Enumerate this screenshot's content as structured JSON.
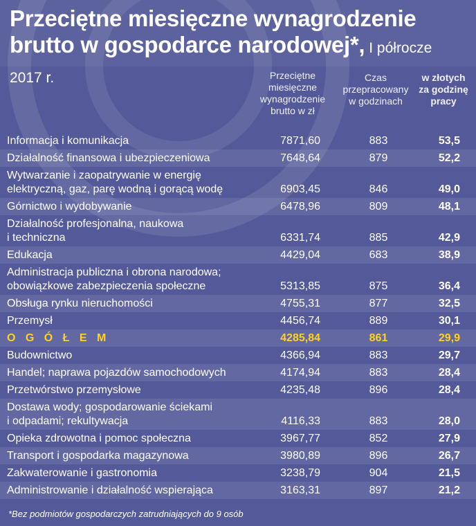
{
  "header": {
    "title": "Przeciętne miesięczne wynagrodzenie brutto w gospodarce narodowej*,",
    "subtitle": "I półrocze 2017 r."
  },
  "chart_data": {
    "type": "table",
    "columns": [
      "Przeciętne miesięczne wynagrodzenie brutto w zł",
      "Czas przepracowany w godzinach",
      "w złotych za godzinę pracy"
    ],
    "rows": [
      {
        "name": "Informacja i komunikacja",
        "salary": "7871,60",
        "hours": "883",
        "rate": "53,5"
      },
      {
        "name": "Działalność finansowa i ubezpieczeniowa",
        "salary": "7648,64",
        "hours": "879",
        "rate": "52,2"
      },
      {
        "name": "Wytwarzanie i zaopatrywanie w energię elektryczną, gaz, parę wodną i gorącą wodę",
        "name_line1": "Wytwarzanie i zaopatrywanie w energię",
        "name_line2": "elektryczną, gaz, parę wodną i gorącą wodę",
        "salary": "6903,45",
        "hours": "846",
        "rate": "49,0"
      },
      {
        "name": "Górnictwo i wydobywanie",
        "salary": "6478,96",
        "hours": "809",
        "rate": "48,1"
      },
      {
        "name": "Działalność profesjonalna, naukowa i techniczna",
        "name_line1": "Działalność profesjonalna, naukowa",
        "name_line2": "i techniczna",
        "salary": "6331,74",
        "hours": "885",
        "rate": "42,9"
      },
      {
        "name": "Edukacja",
        "salary": "4429,04",
        "hours": "683",
        "rate": "38,9"
      },
      {
        "name": "Administracja publiczna i obrona narodowa; obowiązkowe zabezpieczenia społeczne",
        "name_line1": "Administracja publiczna i obrona narodowa;",
        "name_line2": "obowiązkowe zabezpieczenia społeczne",
        "salary": "5313,85",
        "hours": "875",
        "rate": "36,4"
      },
      {
        "name": "Obsługa rynku nieruchomości",
        "salary": "4755,31",
        "hours": "877",
        "rate": "32,5"
      },
      {
        "name": "Przemysł",
        "salary": "4456,74",
        "hours": "889",
        "rate": "30,1"
      },
      {
        "name": "OGÓŁEM",
        "salary": "4285,84",
        "hours": "861",
        "rate": "29,9",
        "highlight": true
      },
      {
        "name": "Budownictwo",
        "salary": "4366,94",
        "hours": "883",
        "rate": "29,7"
      },
      {
        "name": "Handel; naprawa pojazdów samochodowych",
        "salary": "4174,94",
        "hours": "883",
        "rate": "28,4"
      },
      {
        "name": "Przetwórstwo przemysłowe",
        "salary": "4235,48",
        "hours": "896",
        "rate": "28,4"
      },
      {
        "name": "Dostawa wody; gospodarowanie ściekami i odpadami; rekultywacja",
        "name_line1": "Dostawa wody; gospodarowanie ściekami",
        "name_line2": "i odpadami; rekultywacja",
        "salary": "4116,33",
        "hours": "883",
        "rate": "28,0"
      },
      {
        "name": "Opieka zdrowotna i pomoc społeczna",
        "salary": "3967,77",
        "hours": "852",
        "rate": "27,9"
      },
      {
        "name": "Transport i gospodarka magazynowa",
        "salary": "3980,89",
        "hours": "896",
        "rate": "26,7"
      },
      {
        "name": "Zakwaterowanie i gastronomia",
        "salary": "3238,79",
        "hours": "904",
        "rate": "21,5"
      },
      {
        "name": "Administrowanie i działalność wspierająca",
        "salary": "3163,31",
        "hours": "897",
        "rate": "21,2"
      }
    ],
    "total_label_display": "O G Ó Ł E M"
  },
  "header_lines": {
    "salary": [
      "Przeciętne",
      "miesięczne",
      "wynagrodzenie",
      "brutto w zł"
    ],
    "hours": [
      "Czas",
      "przepracowany",
      "w godzinach"
    ],
    "rate": [
      "w złotych",
      "za godzinę",
      "pracy"
    ]
  },
  "footnote": "*Bez podmiotów gospodarczych zatrudniających do 9 osób",
  "colors": {
    "background": "#545a99",
    "highlight": "#ffd319",
    "text": "#ffffff"
  }
}
